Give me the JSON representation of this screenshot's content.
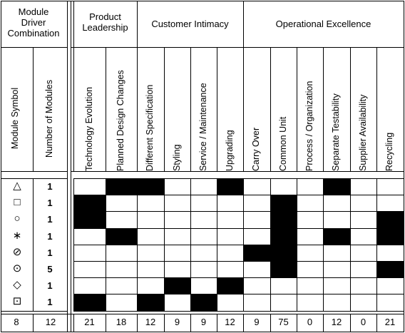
{
  "left_headers": {
    "combination": [
      "Module",
      "Driver",
      "Combination"
    ],
    "module_symbol": "Module Symbol",
    "number_of_modules": "Number of Modules"
  },
  "groups": [
    {
      "label_lines": [
        "Product",
        "Leadership"
      ]
    },
    {
      "label_lines": [
        "Customer Intimacy"
      ]
    },
    {
      "label_lines": [
        "Operational Excellence"
      ]
    }
  ],
  "drivers": [
    "Technology Evolution",
    "Planned Design Changes",
    "Different Specification",
    "Styling",
    "Service / Maintenance",
    "Upgrading",
    "Carry Over",
    "Common Unit",
    "Process / Organization",
    "Separate Testability",
    "Supplier Availability",
    "Recycling"
  ],
  "modules": [
    {
      "symbol": "△",
      "count": "1",
      "cells": [
        0,
        1,
        1,
        0,
        0,
        1,
        0,
        0,
        0,
        1,
        0,
        0
      ]
    },
    {
      "symbol": "□",
      "count": "1",
      "cells": [
        1,
        0,
        0,
        0,
        0,
        0,
        0,
        1,
        0,
        0,
        0,
        0
      ]
    },
    {
      "symbol": "○",
      "count": "1",
      "cells": [
        1,
        0,
        0,
        0,
        0,
        0,
        0,
        1,
        0,
        0,
        0,
        1
      ]
    },
    {
      "symbol": "∗",
      "count": "1",
      "cells": [
        0,
        1,
        0,
        0,
        0,
        0,
        0,
        1,
        0,
        1,
        0,
        1
      ]
    },
    {
      "symbol": "⊘",
      "count": "1",
      "cells": [
        0,
        0,
        0,
        0,
        0,
        0,
        1,
        1,
        0,
        0,
        0,
        0
      ]
    },
    {
      "symbol": "⊙",
      "count": "5",
      "cells": [
        0,
        0,
        0,
        0,
        0,
        0,
        0,
        1,
        0,
        0,
        0,
        1
      ]
    },
    {
      "symbol": "◇",
      "count": "1",
      "cells": [
        0,
        0,
        0,
        1,
        0,
        1,
        0,
        0,
        0,
        0,
        0,
        0
      ]
    },
    {
      "symbol": "⊡",
      "count": "1",
      "cells": [
        1,
        0,
        1,
        0,
        1,
        0,
        0,
        0,
        0,
        0,
        0,
        0
      ]
    }
  ],
  "totals": {
    "symbol_total": "8",
    "module_total": "12",
    "driver_totals": [
      "21",
      "18",
      "12",
      "9",
      "9",
      "12",
      "9",
      "75",
      "0",
      "12",
      "0",
      "21"
    ]
  },
  "colors": {
    "filled": "#000000",
    "empty": "#ffffff",
    "line": "#000000"
  }
}
